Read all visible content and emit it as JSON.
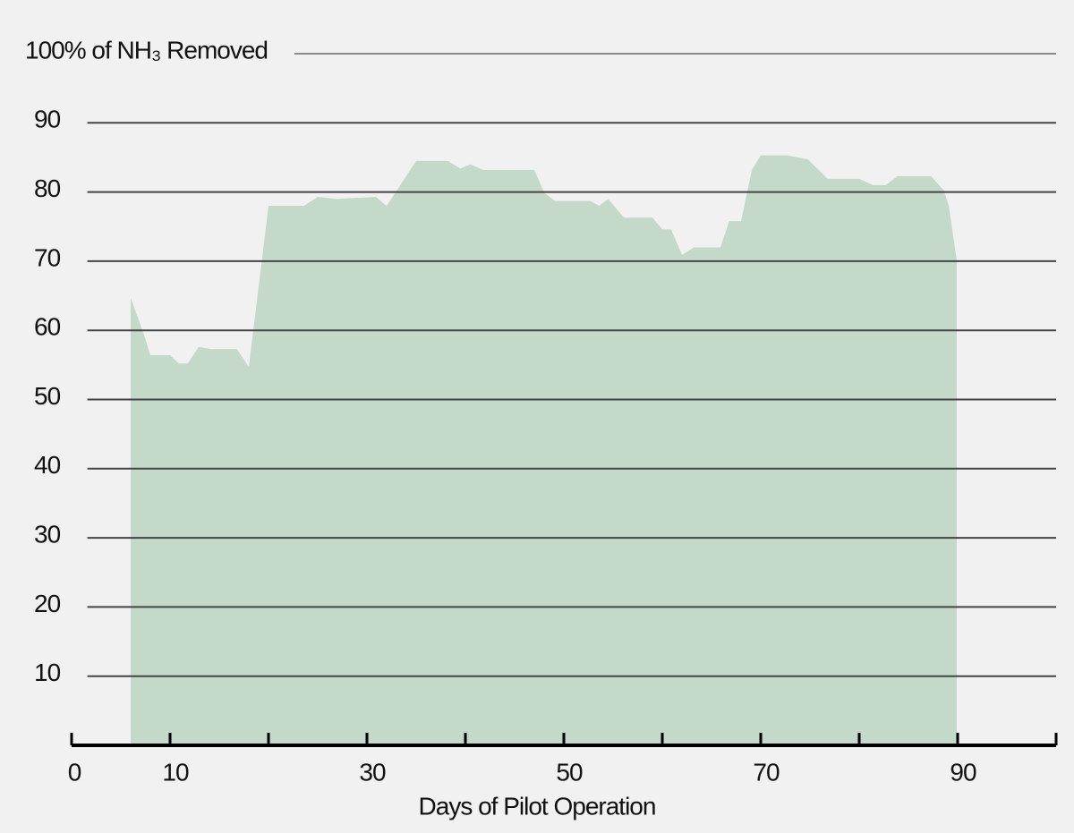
{
  "chart_data": {
    "type": "area",
    "xlabel": "Days of Pilot Operation",
    "x": [
      6,
      7.3,
      8,
      10,
      10.9,
      11.8,
      12.9,
      14.1,
      16.8,
      18,
      20,
      20.9,
      23.6,
      25,
      26.8,
      30.9,
      32,
      33.2,
      35,
      38.2,
      39.5,
      40.5,
      41.8,
      47,
      48,
      49.1,
      52.7,
      53.6,
      54.5,
      56.1,
      59,
      60,
      60.9,
      62,
      63.2,
      65.9,
      66.8,
      68,
      69.1,
      70,
      72.7,
      74.8,
      76.8,
      80,
      81.4,
      82.7,
      83.9,
      87.3,
      88.6,
      89.1,
      89.9
    ],
    "values": [
      64.7,
      59.6,
      56.4,
      56.4,
      55.2,
      55.2,
      57.6,
      57.3,
      57.3,
      54.7,
      78,
      78,
      78,
      79.3,
      79,
      79.3,
      78,
      80.6,
      84.5,
      84.5,
      83.4,
      84,
      83.2,
      83.2,
      79.9,
      78.7,
      78.7,
      78,
      79,
      76.3,
      76.3,
      74.6,
      74.6,
      70.9,
      72,
      72,
      75.8,
      75.8,
      83.2,
      85.3,
      85.3,
      84.7,
      81.9,
      81.9,
      81,
      81,
      82.3,
      82.3,
      80.2,
      78,
      70.2
    ],
    "color": "#c5d9cb",
    "xlim": [
      0,
      100
    ],
    "ylim": [
      0,
      100
    ],
    "xticks": [
      0,
      10,
      {
        "value": 20,
        "label": null
      },
      30,
      {
        "value": 40,
        "label": null
      },
      50,
      {
        "value": 60,
        "label": null
      },
      70,
      {
        "value": 80,
        "label": null
      },
      90,
      {
        "value": 100,
        "label": null
      }
    ],
    "yticks": [
      10,
      20,
      30,
      40,
      50,
      60,
      70,
      80,
      90,
      {
        "value": 100,
        "label": "100% of NH₃ Removed"
      }
    ],
    "grid": true
  }
}
